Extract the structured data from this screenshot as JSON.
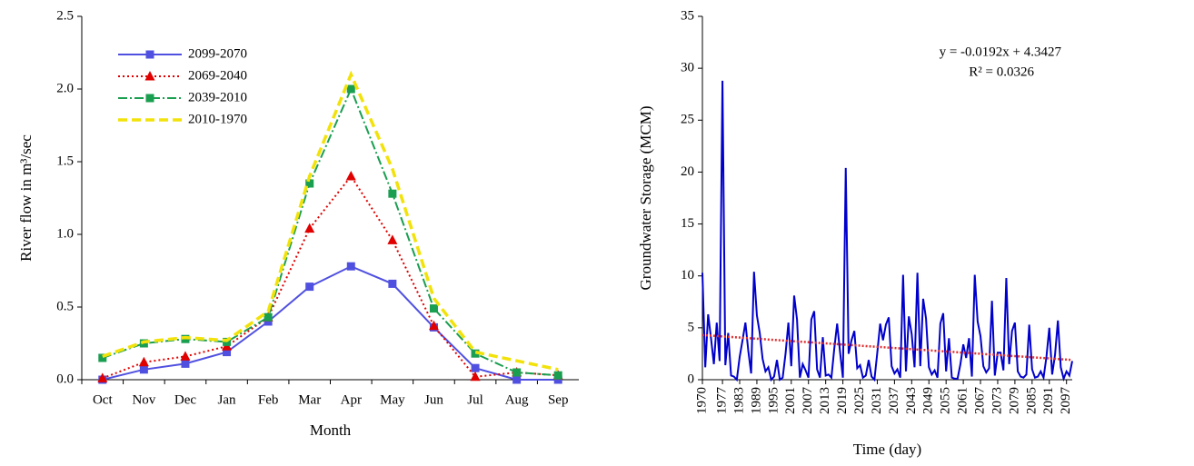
{
  "chart_data": [
    {
      "type": "line",
      "categories": [
        "Oct",
        "Nov",
        "Dec",
        "Jan",
        "Feb",
        "Mar",
        "Apr",
        "May",
        "Jun",
        "Jul",
        "Aug",
        "Sep"
      ],
      "x_label": "Month",
      "y_label": "River flow in m³/sec",
      "ylim": [
        0,
        2.5
      ],
      "yticks": [
        {
          "value": 0,
          "label": "0.0"
        },
        0.5,
        {
          "value": 1,
          "label": "1.0"
        },
        1.5,
        {
          "value": 2,
          "label": "2.0"
        },
        2.5
      ],
      "grid": false,
      "legend": "upper left",
      "series": [
        {
          "name": "2099-2070",
          "color": "#5050e0",
          "dash": "solid",
          "marker": "square",
          "values": [
            0.0,
            0.07,
            0.11,
            0.19,
            0.4,
            0.64,
            0.78,
            0.66,
            0.36,
            0.08,
            0.0,
            0.0
          ]
        },
        {
          "name": "2069-2040",
          "color": "#e00000",
          "dash": "dotted",
          "marker": "triangle",
          "values": [
            0.01,
            0.12,
            0.16,
            0.23,
            0.43,
            1.04,
            1.4,
            0.96,
            0.37,
            0.02,
            0.05,
            0.03
          ]
        },
        {
          "name": "2039-2010",
          "color": "#1a9e50",
          "dash": "dashdot",
          "marker": "square",
          "values": [
            0.15,
            0.25,
            0.28,
            0.26,
            0.43,
            1.35,
            2.0,
            1.28,
            0.49,
            0.18,
            0.05,
            0.03
          ]
        },
        {
          "name": "2010-1970",
          "color": "#f2e20a",
          "dash": "dashed",
          "marker": "none",
          "values": [
            0.16,
            0.26,
            0.29,
            0.27,
            0.47,
            1.4,
            2.1,
            1.45,
            0.56,
            0.19,
            0.13,
            0.07
          ]
        }
      ]
    },
    {
      "type": "line",
      "x_label": "Time (day)",
      "y_label": "Groundwater Storage (MCM)",
      "annotations": [
        "y = -0.0192x + 4.3427",
        "R² = 0.0326"
      ],
      "xlim": [
        1970,
        2099
      ],
      "xticks": [
        1970,
        1977,
        1983,
        1989,
        1995,
        2001,
        2007,
        2013,
        2019,
        2025,
        2031,
        2037,
        2043,
        2049,
        2055,
        2061,
        2067,
        2073,
        2079,
        2085,
        2091,
        2097
      ],
      "ylim": [
        0,
        35
      ],
      "yticks": [
        0,
        5,
        10,
        15,
        20,
        25,
        30,
        35
      ],
      "grid": false,
      "x": [
        1970,
        1971,
        1972,
        1973,
        1974,
        1975,
        1976,
        1977,
        1978,
        1979,
        1980,
        1981,
        1982,
        1983,
        1984,
        1985,
        1986,
        1987,
        1988,
        1989,
        1990,
        1991,
        1992,
        1993,
        1994,
        1995,
        1996,
        1997,
        1998,
        1999,
        2000,
        2001,
        2002,
        2003,
        2004,
        2005,
        2006,
        2007,
        2008,
        2009,
        2010,
        2011,
        2012,
        2013,
        2014,
        2015,
        2016,
        2017,
        2018,
        2019,
        2020,
        2021,
        2022,
        2023,
        2024,
        2025,
        2026,
        2027,
        2028,
        2029,
        2030,
        2031,
        2032,
        2033,
        2034,
        2035,
        2036,
        2037,
        2038,
        2039,
        2040,
        2041,
        2042,
        2043,
        2044,
        2045,
        2046,
        2047,
        2048,
        2049,
        2050,
        2051,
        2052,
        2053,
        2054,
        2055,
        2056,
        2057,
        2058,
        2059,
        2060,
        2061,
        2062,
        2063,
        2064,
        2065,
        2066,
        2067,
        2068,
        2069,
        2070,
        2071,
        2072,
        2073,
        2074,
        2075,
        2076,
        2077,
        2078,
        2079,
        2080,
        2081,
        2082,
        2083,
        2084,
        2085,
        2086,
        2087,
        2088,
        2089,
        2090,
        2091,
        2092,
        2093,
        2094,
        2095,
        2096,
        2097,
        2098,
        2099
      ],
      "series": [
        {
          "color": "#0000cc",
          "dash": "solid",
          "marker": "none",
          "values": [
            10.3,
            1.2,
            6.3,
            4.0,
            1.5,
            5.5,
            1.8,
            28.8,
            1.4,
            4.5,
            0.4,
            0.3,
            0.0,
            2.2,
            3.8,
            5.5,
            2.8,
            0.6,
            10.4,
            6.2,
            4.5,
            2.0,
            0.8,
            1.2,
            0.0,
            0.3,
            1.9,
            0.0,
            0.2,
            2.5,
            5.5,
            1.3,
            8.1,
            5.8,
            0.2,
            1.5,
            0.9,
            0.2,
            5.8,
            6.6,
            1.0,
            0.2,
            4.1,
            0.4,
            0.5,
            0.2,
            3.0,
            5.4,
            2.7,
            0.2,
            20.4,
            2.5,
            3.8,
            4.7,
            1.1,
            1.4,
            0.2,
            0.4,
            1.9,
            0.3,
            0.0,
            2.6,
            5.4,
            3.8,
            5.3,
            6.0,
            1.3,
            0.6,
            1.0,
            0.2,
            10.1,
            0.8,
            6.1,
            4.4,
            1.2,
            10.3,
            1.3,
            7.8,
            5.9,
            1.2,
            0.5,
            0.9,
            0.2,
            5.4,
            6.4,
            0.8,
            4.0,
            0.2,
            0.1,
            0.1,
            1.5,
            3.4,
            2.1,
            4.0,
            0.3,
            10.1,
            5.6,
            4.2,
            1.3,
            0.7,
            1.1,
            7.6,
            0.4,
            2.6,
            2.6,
            0.9,
            9.8,
            1.5,
            4.7,
            5.5,
            0.8,
            0.3,
            0.2,
            0.5,
            5.3,
            1.0,
            0.2,
            0.3,
            0.8,
            0.2,
            2.2,
            5.0,
            0.5,
            2.4,
            5.7,
            1.2,
            0.1,
            0.8,
            0.4,
            1.8
          ]
        }
      ],
      "trendline": {
        "x": [
          1970,
          2099
        ],
        "values": [
          4.3,
          1.9
        ],
        "color": "#e03030"
      }
    }
  ]
}
